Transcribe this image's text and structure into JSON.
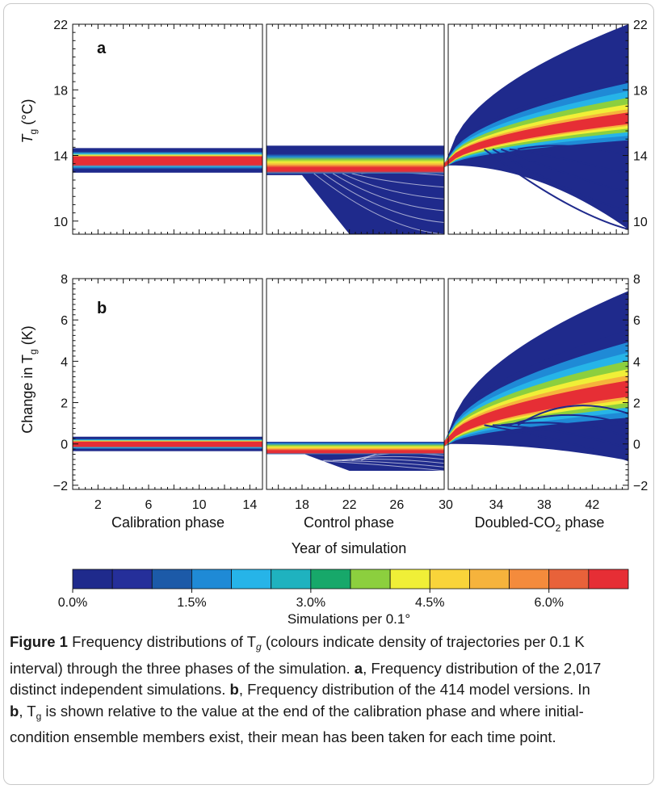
{
  "figure": {
    "caption": {
      "label": "Figure 1",
      "line1": " Frequency distributions of T",
      "line1b": " (colours indicate density of trajectories per 0.1 K",
      "line2": "interval) through the three phases of the simulation. ",
      "a": "a",
      "line3a": ", Frequency distribution of the 2,017",
      "line3": "distinct independent simulations. ",
      "b": "b",
      "line4a": ", Frequency distribution of the 414 model versions. In",
      "line5a": ", T",
      "line5b": " is shown relative to the value at the end of the calibration phase and where initial-",
      "line6": "condition ensemble members exist, their mean has been taken for each time point.",
      "sub_g": "g"
    }
  },
  "chart_data": [
    {
      "type": "heatmap",
      "panel_label": "a",
      "ylabel": "T",
      "ylabel_sub": "g",
      "ylabel_unit": " (°C)",
      "ylim": [
        9.2,
        22
      ],
      "yticks": [
        10,
        14,
        18,
        22
      ],
      "phases": [
        {
          "name": "Calibration phase",
          "xrange": [
            0,
            15
          ],
          "band_center": 13.7,
          "band_spread": 0.7
        },
        {
          "name": "Control phase",
          "xrange": [
            15,
            30
          ],
          "band_center": 13.5,
          "band_spread": 1.0,
          "tail_min": 9.2
        },
        {
          "name": "Doubled-CO2 phase",
          "xrange": [
            30,
            45
          ],
          "band_start": 13.5,
          "band_end": 16.2,
          "upper_end": 22,
          "lower_end": 9.5
        }
      ]
    },
    {
      "type": "heatmap",
      "panel_label": "b",
      "ylabel": "Change in T",
      "ylabel_sub": "g",
      "ylabel_unit": " (K)",
      "ylim": [
        -2.2,
        8
      ],
      "yticks": [
        -2,
        0,
        2,
        4,
        6,
        8
      ],
      "xlabel": "Year of simulation",
      "xticks": [
        {
          "x": 2,
          "label": "2"
        },
        {
          "x": 6,
          "label": "6"
        },
        {
          "x": 10,
          "label": "10"
        },
        {
          "x": 14,
          "label": "14"
        },
        {
          "x": 18,
          "label": "18"
        },
        {
          "x": 22,
          "label": "22"
        },
        {
          "x": 26,
          "label": "26"
        },
        {
          "x": 30,
          "label": "30"
        },
        {
          "x": 34,
          "label": "34"
        },
        {
          "x": 38,
          "label": "38"
        },
        {
          "x": 42,
          "label": "42"
        }
      ],
      "phase_labels": [
        "Calibration phase",
        "Control phase",
        "Doubled-CO"
      ],
      "phase_label_co2_sub": "2",
      "phase_label_co2_tail": " phase",
      "phases": [
        {
          "name": "Calibration phase",
          "xrange": [
            0,
            15
          ],
          "band_center": 0.0
        },
        {
          "name": "Control phase",
          "xrange": [
            15,
            30
          ],
          "band_center": -0.2,
          "tail_min": -1.3
        },
        {
          "name": "Doubled-CO2 phase",
          "xrange": [
            30,
            45
          ],
          "band_end": 2.6,
          "upper_end": 7.4,
          "lower_end": -0.8
        }
      ]
    }
  ],
  "colorbar": {
    "colors": [
      "#1f2a8c",
      "#252f9a",
      "#1c5aa8",
      "#1f8ad6",
      "#26b4e8",
      "#1fb2bf",
      "#17a86a",
      "#8ccf3e",
      "#f0ef37",
      "#f9d43a",
      "#f6b33c",
      "#f48b3c",
      "#e8623a",
      "#e62e35"
    ],
    "tick_labels": [
      "0.0%",
      "1.5%",
      "3.0%",
      "4.5%",
      "6.0%"
    ],
    "tick_values": [
      0.0,
      1.5,
      3.0,
      4.5,
      6.0
    ],
    "max_value": 7.0,
    "label": "Simulations per 0.1°"
  }
}
